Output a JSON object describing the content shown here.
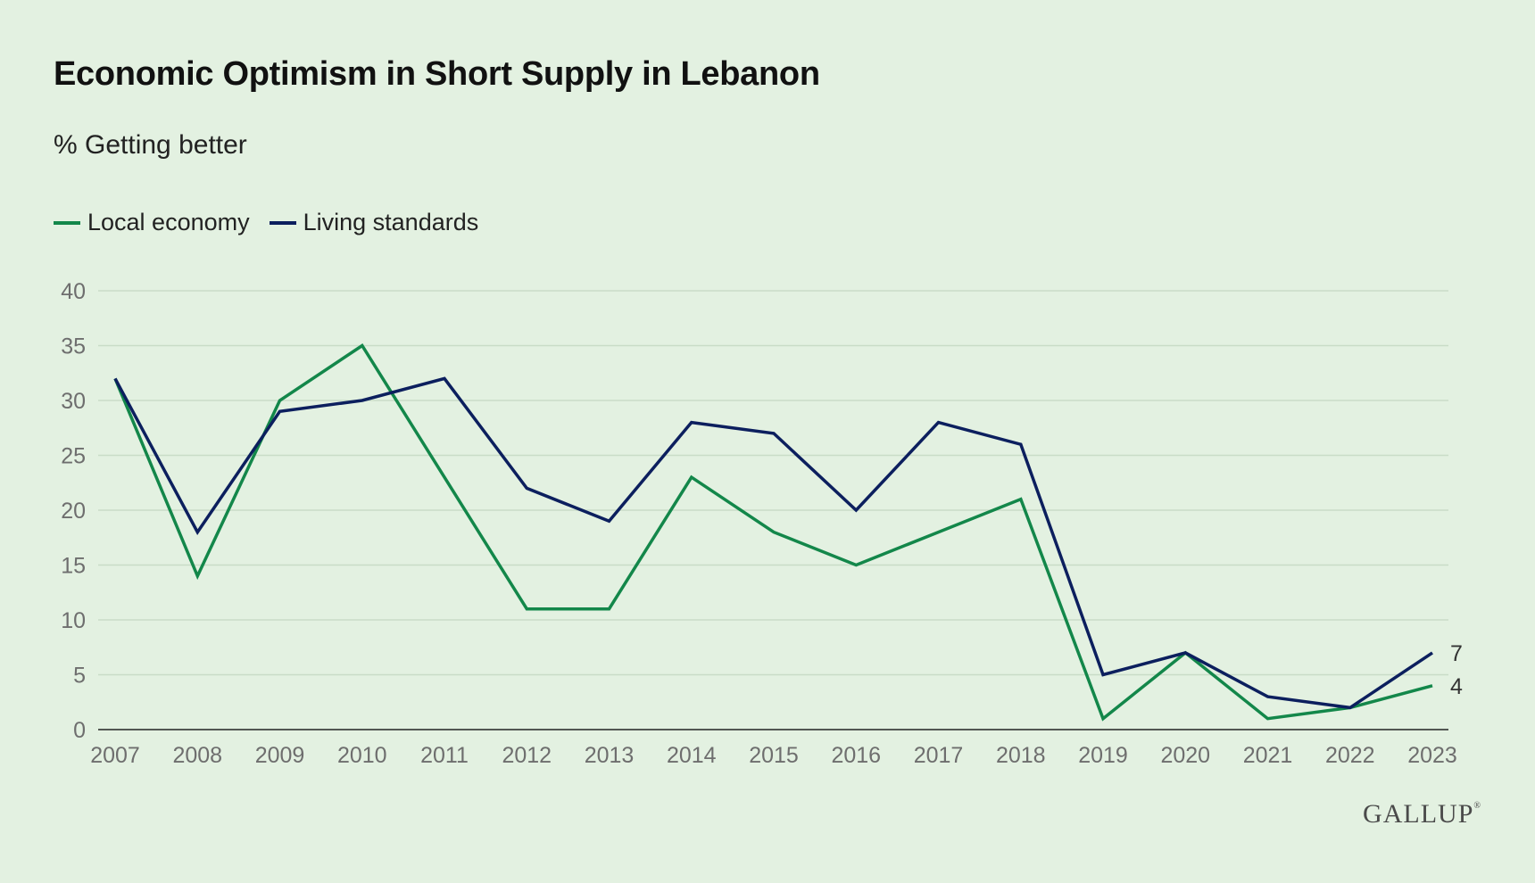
{
  "title": "Economic Optimism in Short Supply in Lebanon",
  "subtitle": "% Getting better",
  "logo": "GALLUP",
  "logo_mark": "®",
  "colors": {
    "background": "#e3f1e1",
    "gridline": "#c9dcc7",
    "axis": "#222222",
    "local_economy": "#13874a",
    "living_standards": "#0c1f5e"
  },
  "chart_data": {
    "type": "line",
    "title": "Economic Optimism in Short Supply in Lebanon",
    "subtitle": "% Getting better",
    "x": [
      "2007",
      "2008",
      "2009",
      "2010",
      "2011",
      "2012",
      "2013",
      "2014",
      "2015",
      "2016",
      "2017",
      "2018",
      "2019",
      "2020",
      "2021",
      "2022",
      "2023"
    ],
    "series": [
      {
        "name": "Local economy",
        "color": "#13874a",
        "values": [
          32,
          14,
          30,
          35,
          23,
          11,
          11,
          23,
          18,
          15,
          18,
          21,
          1,
          7,
          1,
          2,
          4
        ],
        "end_label": "4"
      },
      {
        "name": "Living standards",
        "color": "#0c1f5e",
        "values": [
          32,
          18,
          29,
          30,
          32,
          22,
          19,
          28,
          27,
          20,
          28,
          26,
          5,
          7,
          3,
          2,
          7
        ],
        "end_label": "7"
      }
    ],
    "yticks": [
      "0",
      "5",
      "10",
      "15",
      "20",
      "25",
      "30",
      "35",
      "40"
    ],
    "ylim": [
      0,
      40
    ],
    "xlabel": "",
    "ylabel": "",
    "grid": true,
    "legend_position": "top-left"
  }
}
